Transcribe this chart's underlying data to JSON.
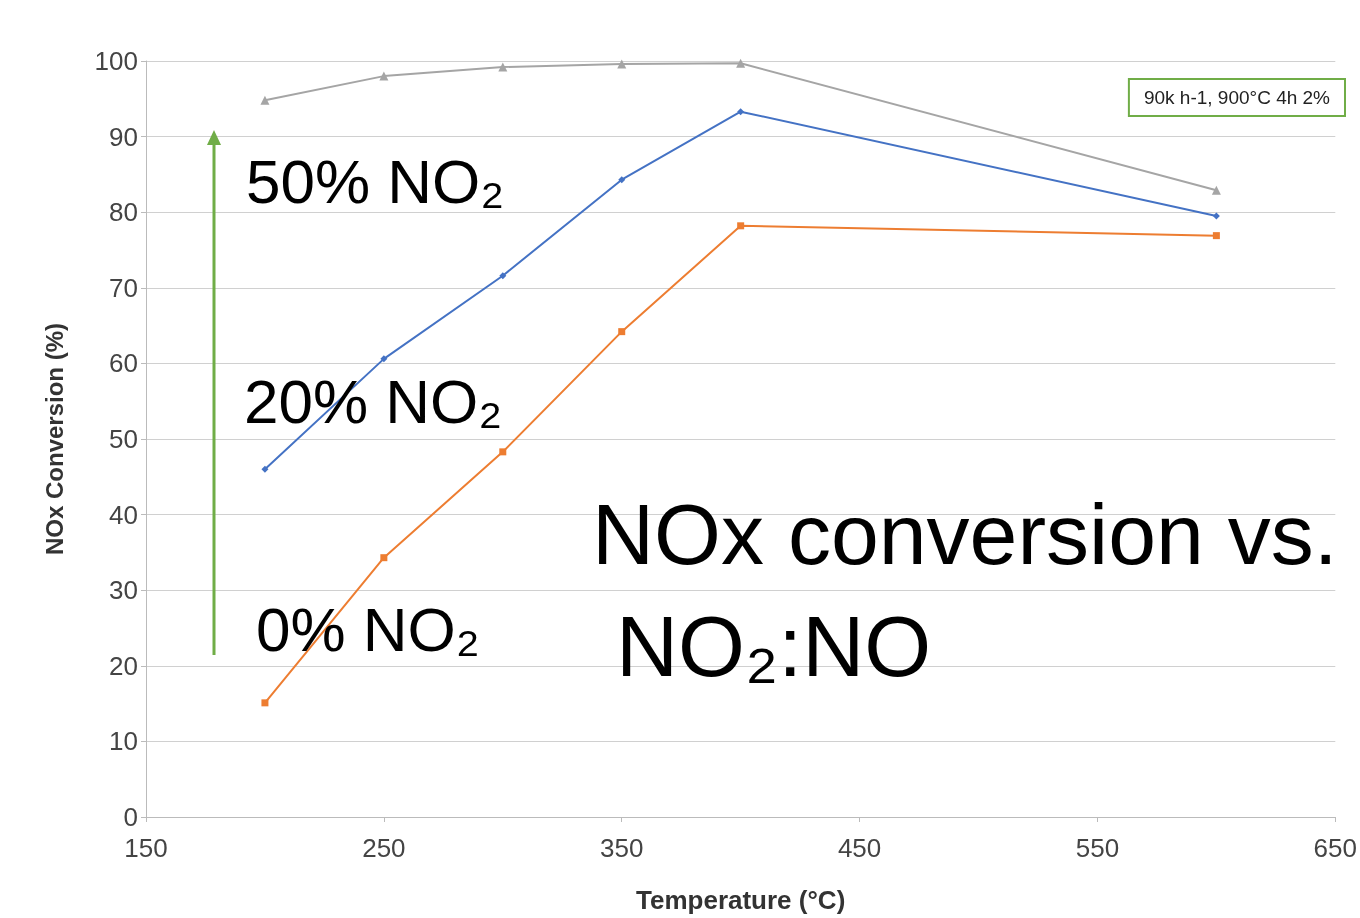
{
  "chart_data": {
    "type": "line",
    "xlabel": "Temperature (°C)",
    "ylabel": "NOx Conversion (%)",
    "x": [
      200,
      250,
      300,
      350,
      400,
      600
    ],
    "series": [
      {
        "name": "50% NO₂",
        "color": "#a5a5a5",
        "marker": "triangle",
        "values": [
          94.8,
          98.0,
          99.2,
          99.6,
          99.7,
          82.9
        ]
      },
      {
        "name": "20% NO₂",
        "color": "#4472c4",
        "marker": "diamond",
        "values": [
          46.0,
          60.6,
          71.6,
          84.3,
          93.3,
          79.5
        ]
      },
      {
        "name": "0% NO₂",
        "color": "#ed7d31",
        "marker": "square",
        "values": [
          15.1,
          34.3,
          48.3,
          64.2,
          78.2,
          76.9
        ]
      }
    ],
    "annotations": [
      "90k h-1, 900°C 4h 2%",
      "NOx conversion vs. NO₂:NO"
    ],
    "xlim": [
      150,
      650
    ],
    "xticks": [
      150,
      250,
      350,
      450,
      550,
      650
    ],
    "ylim": [
      0,
      100
    ],
    "yticks": [
      0,
      10,
      20,
      30,
      40,
      50,
      60,
      70,
      80,
      90,
      100
    ],
    "grid": "y",
    "legend": false,
    "line_style": "solid"
  }
}
